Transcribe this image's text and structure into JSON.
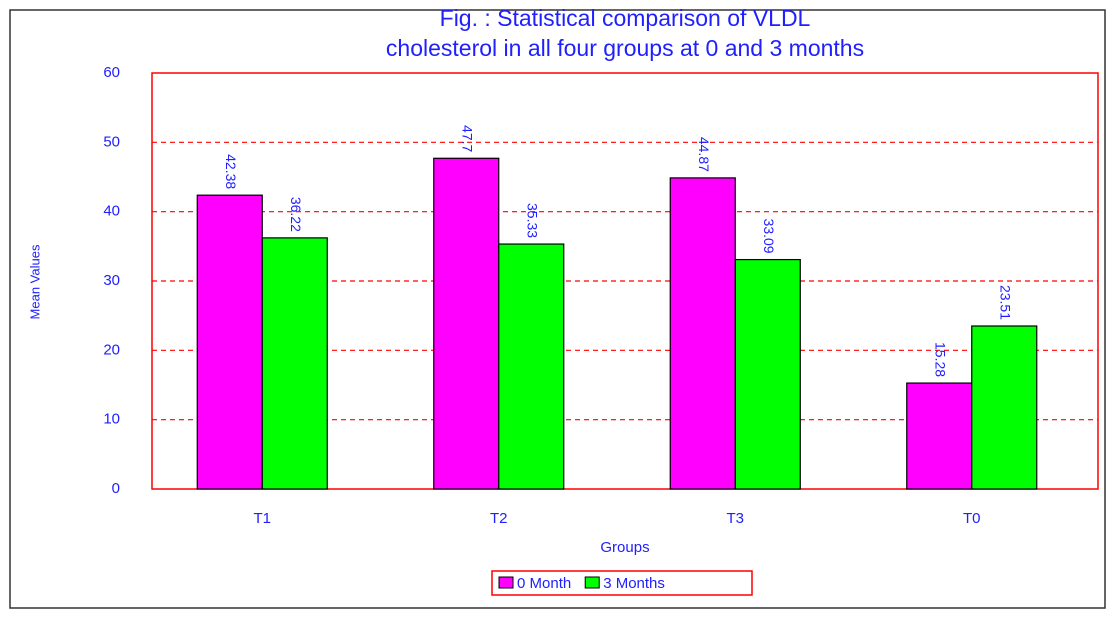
{
  "chart_data": {
    "type": "bar",
    "title": [
      "Fig.        : Statistical comparison of VLDL",
      "cholesterol in all four groups at 0 and 3 months"
    ],
    "x_label": "Groups",
    "y_label": "Mean Values",
    "categories": [
      "T1",
      "T2",
      "T3",
      "T0"
    ],
    "series": [
      {
        "name": "0 Month",
        "color": "#ff00ff",
        "values": [
          42.38,
          47.7,
          44.87,
          15.28
        ]
      },
      {
        "name": "3 Months",
        "color": "#00ff00",
        "values": [
          36.22,
          35.33,
          33.09,
          23.51
        ]
      }
    ],
    "ylim": [
      0,
      60
    ],
    "yticks": [
      0,
      10,
      20,
      30,
      40,
      50,
      60
    ],
    "grid": true,
    "legend": "bottom"
  }
}
